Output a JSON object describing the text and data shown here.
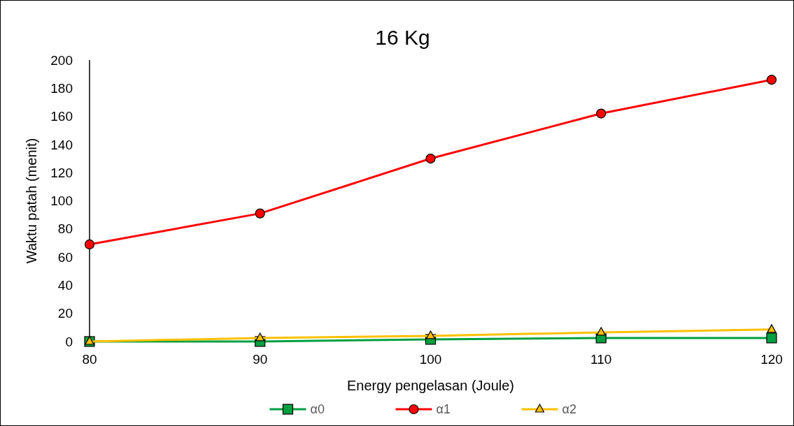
{
  "chart_data": {
    "type": "line",
    "title": "16 Kg",
    "xlabel": "Energy pengelasan (Joule)",
    "ylabel": "Waktu patah (menit)",
    "x": [
      80,
      90,
      100,
      110,
      120
    ],
    "series": [
      {
        "name": "α0",
        "color": "#00a040",
        "marker": "square",
        "values": [
          0,
          0,
          1.5,
          2.5,
          2.5
        ]
      },
      {
        "name": "α1",
        "color": "#ff0000",
        "marker": "circle",
        "values": [
          69,
          91,
          130,
          162,
          186
        ]
      },
      {
        "name": "α2",
        "color": "#ffc000",
        "marker": "triangle",
        "values": [
          0,
          2.5,
          4,
          6.5,
          8.5
        ]
      }
    ],
    "xlim": [
      80,
      120
    ],
    "xticks": [
      80,
      90,
      100,
      110,
      120
    ],
    "ylim": [
      0,
      200
    ],
    "yticks": [
      0,
      20,
      40,
      60,
      80,
      100,
      120,
      140,
      160,
      180,
      200
    ],
    "grid": false,
    "legend": "bottom"
  }
}
